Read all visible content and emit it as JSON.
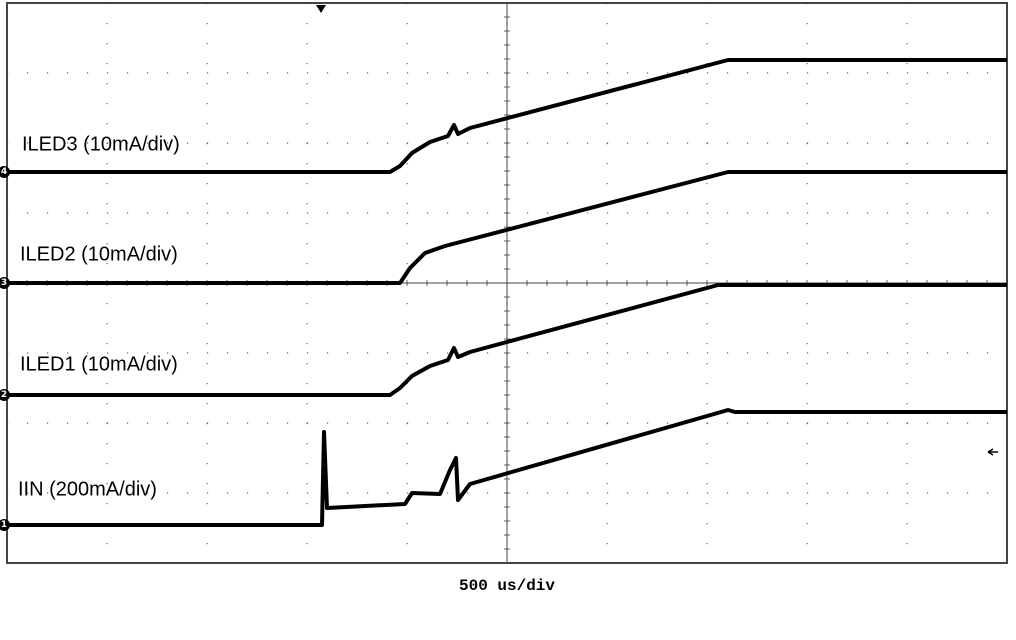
{
  "traces": [
    {
      "channel": "4",
      "label": "ILED3 (10mA/div)"
    },
    {
      "channel": "3",
      "label": "ILED2 (10mA/div)"
    },
    {
      "channel": "2",
      "label": "ILED1 (10mA/div)"
    },
    {
      "channel": "1",
      "label": "IIN (200mA/div)"
    }
  ],
  "timebase": "500 us/div"
}
